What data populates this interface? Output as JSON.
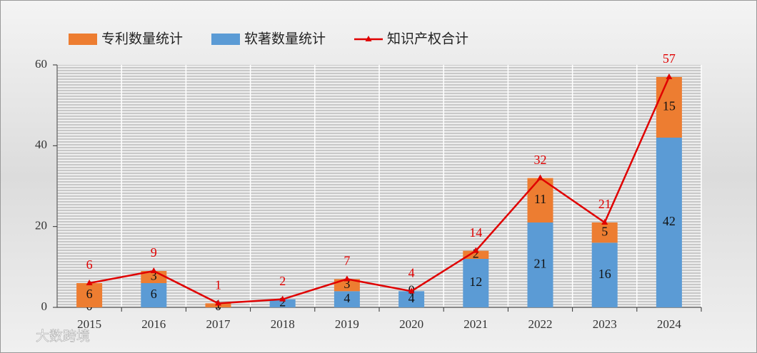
{
  "chart_data": {
    "type": "bar",
    "categories": [
      "2015",
      "2016",
      "2017",
      "2018",
      "2019",
      "2020",
      "2021",
      "2022",
      "2023",
      "2024"
    ],
    "series": [
      {
        "name": "专利数量统计",
        "color": "#ed7d31",
        "values": [
          6,
          3,
          1,
          0,
          3,
          0,
          2,
          11,
          5,
          15
        ]
      },
      {
        "name": "软著数量统计",
        "color": "#5b9bd5",
        "values": [
          0,
          6,
          0,
          2,
          4,
          4,
          12,
          21,
          16,
          42
        ]
      },
      {
        "name": "知识产权合计",
        "type": "line",
        "color": "#e00000",
        "values": [
          6,
          9,
          1,
          2,
          7,
          4,
          14,
          32,
          21,
          57
        ]
      }
    ],
    "ylim": [
      0,
      60
    ],
    "yticks": [
      0,
      20,
      40,
      60
    ],
    "grid": true,
    "watermark": "大数跨境"
  }
}
